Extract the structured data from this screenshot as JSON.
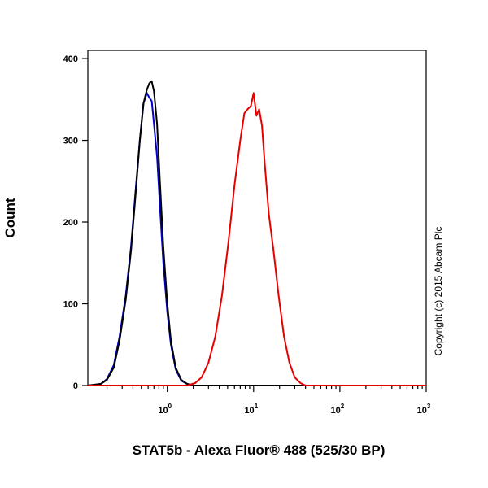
{
  "chart_data": {
    "type": "line",
    "title": "",
    "xlabel": "STAT5b - Alexa Fluor® 488 (525/30 BP)",
    "ylabel": "Count",
    "x_scale": "log",
    "xlim": [
      0.12,
      1000
    ],
    "ylim": [
      0,
      410
    ],
    "x_ticks": [
      {
        "value": 1,
        "base": "10",
        "exp": "0"
      },
      {
        "value": 10,
        "base": "10",
        "exp": "1"
      },
      {
        "value": 100,
        "base": "10",
        "exp": "2"
      },
      {
        "value": 1000,
        "base": "10",
        "exp": "3"
      }
    ],
    "y_ticks": [
      {
        "value": 0,
        "label": "0"
      },
      {
        "value": 100,
        "label": "100"
      },
      {
        "value": 200,
        "label": "200"
      },
      {
        "value": 300,
        "label": "300"
      },
      {
        "value": 400,
        "label": "400"
      }
    ],
    "grid": false,
    "series": [
      {
        "color": "#0000cc",
        "x": [
          0.12,
          0.17,
          0.2,
          0.24,
          0.28,
          0.33,
          0.38,
          0.43,
          0.48,
          0.53,
          0.58,
          0.62,
          0.66,
          0.7,
          0.76,
          0.82,
          0.9,
          1.0,
          1.1,
          1.25,
          1.45,
          1.7,
          2.0,
          1000
        ],
        "y": [
          0,
          2,
          8,
          25,
          60,
          110,
          170,
          240,
          300,
          345,
          358,
          352,
          348,
          320,
          280,
          220,
          150,
          90,
          50,
          20,
          6,
          2,
          0,
          0
        ]
      },
      {
        "color": "#000000",
        "x": [
          0.12,
          0.17,
          0.2,
          0.24,
          0.28,
          0.33,
          0.38,
          0.43,
          0.48,
          0.53,
          0.58,
          0.62,
          0.66,
          0.7,
          0.76,
          0.82,
          0.9,
          1.0,
          1.1,
          1.25,
          1.45,
          1.7,
          2.0,
          1000
        ],
        "y": [
          0,
          2,
          7,
          22,
          55,
          105,
          165,
          235,
          300,
          345,
          362,
          370,
          372,
          360,
          320,
          250,
          170,
          100,
          55,
          22,
          7,
          2,
          0,
          0
        ]
      },
      {
        "color": "#e60000",
        "x": [
          0.12,
          1.7,
          2.1,
          2.5,
          3.0,
          3.6,
          4.3,
          5.1,
          6.0,
          7.0,
          7.8,
          8.5,
          9.3,
          10.0,
          10.8,
          11.6,
          12.5,
          13.5,
          15.0,
          17.0,
          19.5,
          22.5,
          26.0,
          30.0,
          35.0,
          40.0,
          1000
        ],
        "y": [
          0,
          0,
          3,
          10,
          28,
          60,
          110,
          175,
          245,
          300,
          333,
          338,
          342,
          358,
          330,
          338,
          318,
          270,
          210,
          165,
          110,
          60,
          28,
          10,
          3,
          0,
          0
        ]
      }
    ]
  },
  "copyright": "Copyright (c) 2015 Abcam Plc"
}
